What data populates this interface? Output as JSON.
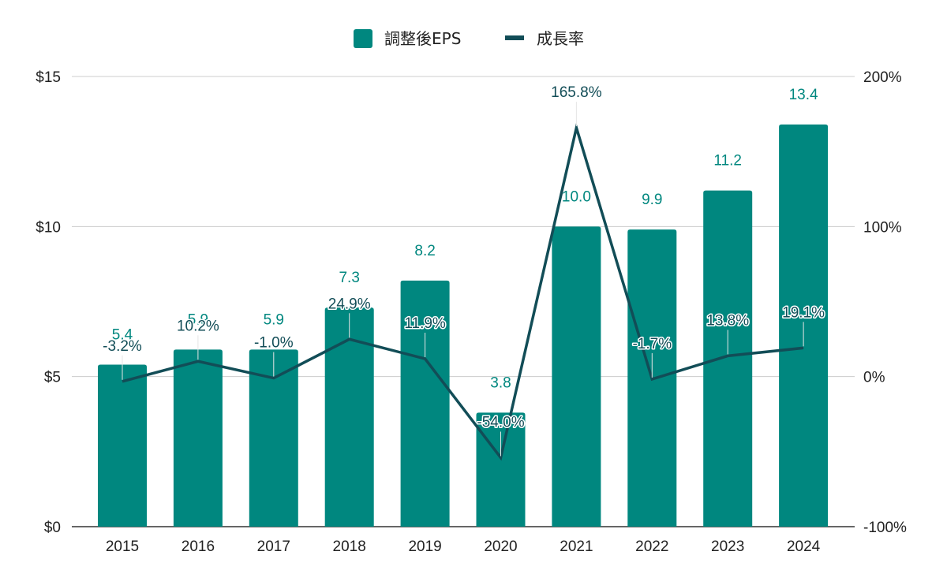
{
  "chart_data": {
    "type": "bar",
    "combo": "bar+line",
    "categories": [
      "2015",
      "2016",
      "2017",
      "2018",
      "2019",
      "2020",
      "2021",
      "2022",
      "2023",
      "2024"
    ],
    "series": [
      {
        "name": "調整後EPS",
        "type": "bar",
        "axis": "left",
        "color": "#00877f",
        "values": [
          5.4,
          5.9,
          5.9,
          7.3,
          8.2,
          3.8,
          10.0,
          9.9,
          11.2,
          13.4
        ],
        "labels": [
          "5.4",
          "5.9",
          "5.9",
          "7.3",
          "8.2",
          "3.8",
          "10.0",
          "9.9",
          "11.2",
          "13.4"
        ]
      },
      {
        "name": "成長率",
        "type": "line",
        "axis": "right",
        "color": "#124d57",
        "values": [
          -3.2,
          10.2,
          -1.0,
          24.9,
          11.9,
          -54.0,
          165.8,
          -1.7,
          13.8,
          19.1
        ],
        "labels": [
          "-3.2%",
          "10.2%",
          "-1.0%",
          "24.9%",
          "11.9%",
          "-54.0%",
          "165.8%",
          "-1.7%",
          "13.8%",
          "19.1%"
        ]
      }
    ],
    "left_axis": {
      "ylim": [
        0,
        15
      ],
      "ticks": [
        0,
        5,
        10,
        15
      ],
      "tick_labels": [
        "$0",
        "$5",
        "$10",
        "$15"
      ]
    },
    "right_axis": {
      "ylim": [
        -100,
        200
      ],
      "ticks": [
        -100,
        0,
        100,
        200
      ],
      "tick_labels": [
        "-100%",
        "0%",
        "100%",
        "200%"
      ]
    },
    "title": "",
    "xlabel": "",
    "ylabel": "",
    "grid": true,
    "legend": {
      "position": "top-center",
      "entries": [
        {
          "label": "調整後EPS",
          "marker": "square",
          "color": "#00877f"
        },
        {
          "label": "成長率",
          "marker": "line",
          "color": "#124d57"
        }
      ]
    }
  }
}
